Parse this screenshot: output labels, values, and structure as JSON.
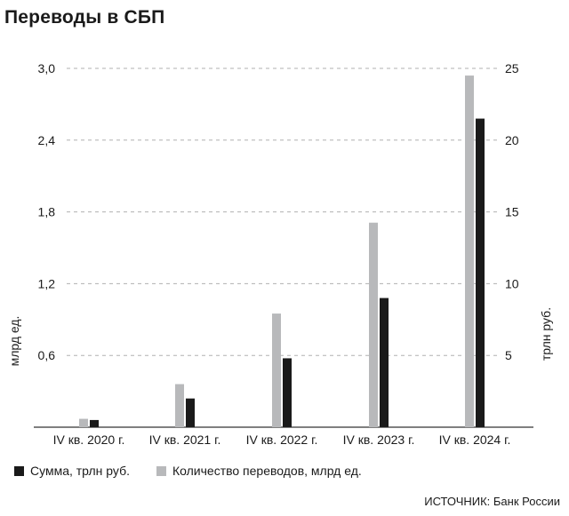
{
  "title": "Переводы в СБП",
  "source": "ИСТОЧНИК: Банк России",
  "colors": {
    "sum": "#1a1a1a",
    "count": "#b8b9bb",
    "grid": "#b0b0b0",
    "axis": "#555555"
  },
  "chart_data": {
    "type": "bar",
    "categories": [
      "IV кв. 2020 г.",
      "IV кв. 2021 г.",
      "IV кв. 2022 г.",
      "IV кв. 2023 г.",
      "IV кв. 2024 г."
    ],
    "series": [
      {
        "name": "Количество переводов, млрд ед.",
        "axis": "left",
        "values": [
          0.07,
          0.36,
          0.95,
          1.71,
          2.94
        ]
      },
      {
        "name": "Сумма, трлн руб.",
        "axis": "right",
        "values": [
          0.5,
          2.0,
          4.8,
          9.0,
          21.5
        ]
      }
    ],
    "ylabel_left": "млрд ед.",
    "ylabel_right": "трлн руб.",
    "ylim_left": [
      0,
      3.0
    ],
    "ylim_right": [
      0,
      25
    ],
    "yticks_left": [
      "0,6",
      "1,2",
      "1,8",
      "2,4",
      "3,0"
    ],
    "yticks_right": [
      "5",
      "10",
      "15",
      "20",
      "25"
    ],
    "grid": true,
    "legend_position": "bottom"
  }
}
